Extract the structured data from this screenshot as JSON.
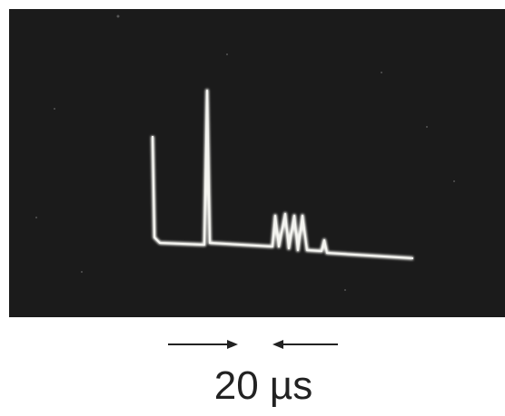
{
  "caption": "20 µs"
}
